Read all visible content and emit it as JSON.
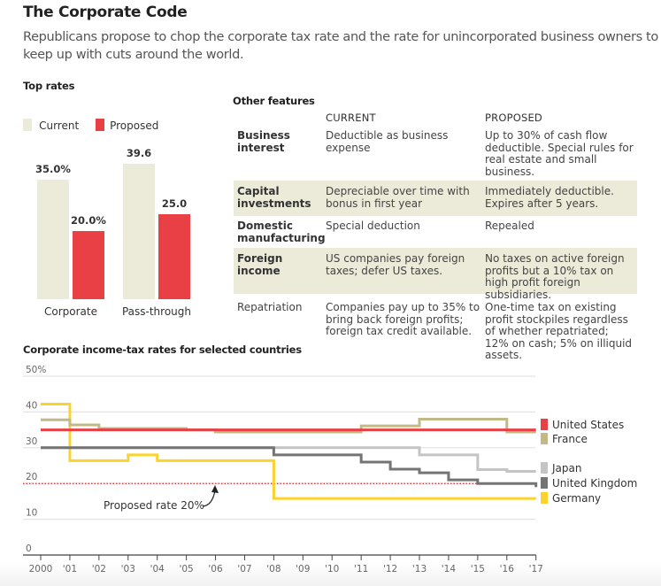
{
  "header": {
    "title": "The Corporate Code",
    "subtitle": "Republicans propose to chop the corporate tax rate and the rate for unincorporated business owners to keep up with cuts around the world."
  },
  "top_rates": {
    "heading": "Top rates",
    "legend": [
      {
        "label": "Current",
        "color": "#ecead9"
      },
      {
        "label": "Proposed",
        "color": "#e84044"
      }
    ]
  },
  "other_features": {
    "heading": "Other features",
    "columns": [
      "CURRENT",
      "PROPOSED"
    ],
    "rows": [
      {
        "label": "Business interest",
        "current": "Deductible as business expense",
        "proposed": "Up to 30% of cash flow deductible. Special rules for real estate and small business."
      },
      {
        "label": "Capital investments",
        "current": "Depreciable over time with bonus in first year",
        "proposed": "Immediately deductible. Expires after 5 years."
      },
      {
        "label": "Domestic manufacturing",
        "current": "Special deduction",
        "proposed": "Repealed"
      },
      {
        "label": "Foreign income",
        "current": "US companies pay foreign taxes; defer US taxes.",
        "proposed": "No taxes on active foreign profits but a 10% tax on high profit foreign subsidiaries."
      },
      {
        "label": "Repatriation",
        "current": "Companies pay up to 35% to bring back foreign profits; foreign tax credit available.",
        "proposed": "One-time tax on existing profit stockpiles regardless of whether repatriated; 12% on cash; 5% on illiquid assets."
      }
    ]
  },
  "chart_data": [
    {
      "type": "bar",
      "title": "Top rates",
      "categories": [
        "Corporate",
        "Pass-through"
      ],
      "series": [
        {
          "name": "Current",
          "values": [
            35.0,
            39.6
          ],
          "labels": [
            "35.0%",
            "39.6"
          ],
          "color": "#ecead9"
        },
        {
          "name": "Proposed",
          "values": [
            20.0,
            25.0
          ],
          "labels": [
            "20.0%",
            "25.0"
          ],
          "color": "#e84044"
        }
      ],
      "ylim": [
        0,
        40
      ],
      "legend": "top-left"
    },
    {
      "type": "line",
      "title": "Corporate income-tax rates for selected countries",
      "step": true,
      "x": [
        2000,
        2001,
        2002,
        2003,
        2004,
        2005,
        2006,
        2007,
        2008,
        2009,
        2010,
        2011,
        2012,
        2013,
        2014,
        2015,
        2016,
        2017
      ],
      "x_tick_labels": [
        "2000",
        "'01",
        "'02",
        "'03",
        "'04",
        "'05",
        "'06",
        "'07",
        "'08",
        "'09",
        "'10",
        "'11",
        "'12",
        "'13",
        "'14",
        "'15",
        "'16",
        "'17"
      ],
      "y_ticks": [
        0,
        10,
        20,
        30,
        40,
        50
      ],
      "y_tick_labels": [
        "0",
        "10",
        "20",
        "30",
        "40",
        "50%"
      ],
      "ylim": [
        0,
        50
      ],
      "grid": true,
      "legend": "right",
      "series": [
        {
          "name": "United States",
          "color": "#e84044",
          "values": [
            35,
            35,
            35,
            35,
            35,
            35,
            35,
            35,
            35,
            35,
            35,
            35,
            35,
            35,
            35,
            35,
            35,
            35
          ]
        },
        {
          "name": "France",
          "color": "#c2b984",
          "values": [
            37.8,
            36.4,
            35.4,
            35.4,
            35.4,
            35,
            34.4,
            34.4,
            34.4,
            34.4,
            34.4,
            36.1,
            36.1,
            38,
            38,
            38,
            34.4,
            34.4
          ]
        },
        {
          "name": "Japan",
          "color": "#c4c4c4",
          "values": [
            30,
            30,
            30,
            30,
            30,
            30,
            30,
            30,
            30,
            30,
            30,
            30,
            30,
            28,
            28,
            23.9,
            23.4,
            23.4
          ]
        },
        {
          "name": "United Kingdom",
          "color": "#747474",
          "values": [
            30,
            30,
            30,
            30,
            30,
            30,
            30,
            30,
            28,
            28,
            28,
            26,
            24,
            23,
            21,
            20,
            20,
            19
          ]
        },
        {
          "name": "Germany",
          "color": "#fcd22c",
          "values": [
            42.2,
            26.4,
            26.4,
            28,
            26.4,
            26.4,
            26.4,
            26.4,
            15.8,
            15.8,
            15.8,
            15.8,
            15.8,
            15.8,
            15.8,
            15.8,
            15.8,
            15.8
          ]
        }
      ],
      "reference_line": {
        "value": 20,
        "color": "#e84044",
        "style": "dotted"
      },
      "annotation": "Proposed rate 20%"
    }
  ]
}
